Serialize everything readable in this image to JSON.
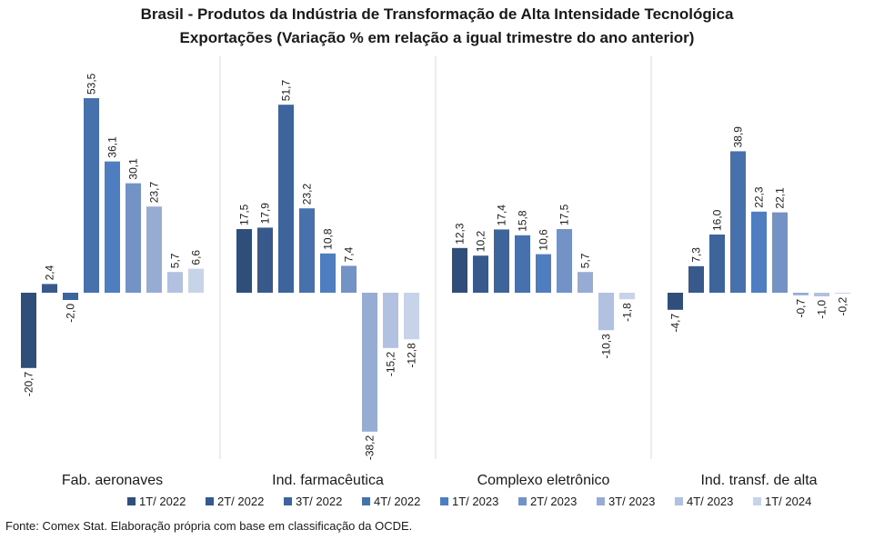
{
  "chart_data": {
    "type": "bar",
    "title": "Brasil - Produtos da Indústria de Transformação  de Alta Intensidade Tecnológica",
    "subtitle": "Exportações (Variação % em relação a igual trimestre do ano anterior)",
    "xlabel": "",
    "ylabel": "",
    "grid": false,
    "legend": "bottom",
    "categories": [
      "Fab. aeronaves",
      "Ind. farmacêutica",
      "Complexo eletrônico",
      "Ind. transf. de alta"
    ],
    "series": [
      {
        "name": "1T/ 2022",
        "color": "#2f4f7a",
        "values": [
          -20.7,
          17.5,
          12.3,
          -4.7
        ],
        "labels": [
          "-20,7",
          "17,5",
          "12,3",
          "-4,7"
        ]
      },
      {
        "name": "2T/ 2022",
        "color": "#37598b",
        "values": [
          2.4,
          17.9,
          10.2,
          7.3
        ],
        "labels": [
          "2,4",
          "17,9",
          "10,2",
          "7,3"
        ]
      },
      {
        "name": "3T/ 2022",
        "color": "#3e649c",
        "values": [
          -2.0,
          51.7,
          17.4,
          16.0
        ],
        "labels": [
          "-2,0",
          "51,7",
          "17,4",
          "16,0"
        ]
      },
      {
        "name": "4T/ 2022",
        "color": "#4671ad",
        "values": [
          53.5,
          23.2,
          15.8,
          38.9
        ],
        "labels": [
          "53,5",
          "23,2",
          "15,8",
          "38,9"
        ]
      },
      {
        "name": "1T/ 2023",
        "color": "#4f7ec0",
        "values": [
          36.1,
          10.8,
          10.6,
          22.3
        ],
        "labels": [
          "36,1",
          "10,8",
          "10,6",
          "22,3"
        ]
      },
      {
        "name": "2T/ 2023",
        "color": "#7393c6",
        "values": [
          30.1,
          7.4,
          17.5,
          22.1
        ],
        "labels": [
          "30,1",
          "7,4",
          "17,5",
          "22,1"
        ]
      },
      {
        "name": "3T/ 2023",
        "color": "#97acd3",
        "values": [
          23.7,
          -38.2,
          5.7,
          -0.7
        ],
        "labels": [
          "23,7",
          "-38,2",
          "5,7",
          "-0,7"
        ]
      },
      {
        "name": "4T/ 2023",
        "color": "#b1c1df",
        "values": [
          5.7,
          -15.2,
          -10.3,
          -1.0
        ],
        "labels": [
          "5,7",
          "-15,2",
          "-10,3",
          "-1,0"
        ]
      },
      {
        "name": "1T/ 2024",
        "color": "#c7d3e8",
        "values": [
          6.6,
          -12.8,
          -1.8,
          -0.2
        ],
        "labels": [
          "6,6",
          "-12,8",
          "-1,8",
          "-0,2"
        ]
      }
    ]
  },
  "source": "Fonte: Comex Stat. Elaboração própria com base em classificação da OCDE."
}
